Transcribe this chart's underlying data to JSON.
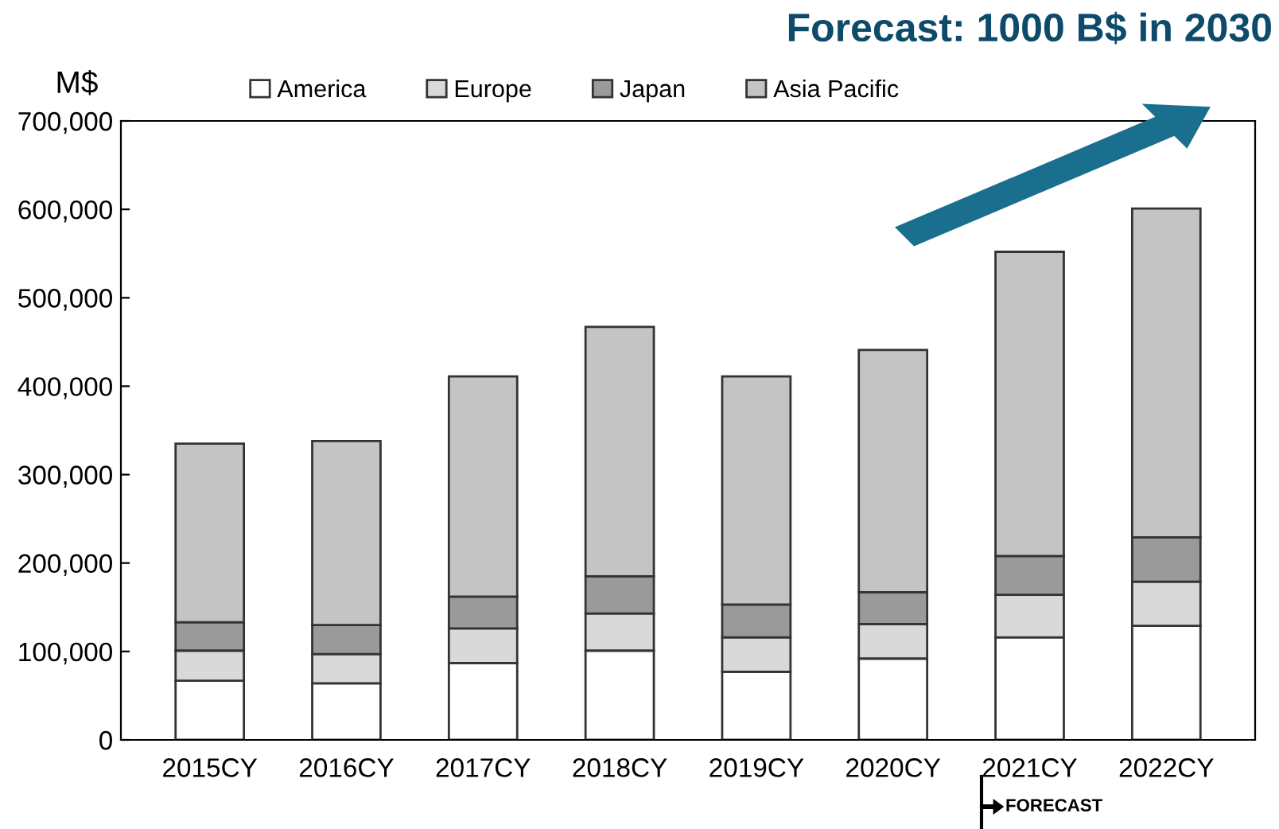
{
  "chart_data": {
    "type": "bar",
    "stacked": true,
    "ylabel": "M$",
    "categories": [
      "2015CY",
      "2016CY",
      "2017CY",
      "2018CY",
      "2019CY",
      "2020CY",
      "2021CY",
      "2022CY"
    ],
    "series": [
      {
        "name": "America",
        "color": "#ffffff",
        "values": [
          67000,
          64000,
          87000,
          101000,
          77000,
          92000,
          116000,
          129000
        ]
      },
      {
        "name": "Europe",
        "color": "#d9d9d9",
        "values": [
          34000,
          33000,
          39000,
          42000,
          39000,
          39000,
          48000,
          50000
        ]
      },
      {
        "name": "Japan",
        "color": "#9a9a9a",
        "values": [
          32000,
          33000,
          36000,
          42000,
          37000,
          36000,
          44000,
          50000
        ]
      },
      {
        "name": "Asia Pacific",
        "color": "#c4c4c4",
        "values": [
          202000,
          208000,
          249000,
          282000,
          258000,
          274000,
          344000,
          372000
        ]
      }
    ],
    "ylim": [
      0,
      700000
    ],
    "yticks": [
      0,
      {
        "value": 100000,
        "label": "100,000"
      },
      {
        "value": 200000,
        "label": "200,000"
      },
      {
        "value": 300000,
        "label": "300,000"
      },
      {
        "value": 400000,
        "label": "400,000"
      },
      {
        "value": 500000,
        "label": "500,000"
      },
      {
        "value": 600000,
        "label": "600,000"
      },
      {
        "value": 700000,
        "label": "700,000"
      }
    ],
    "grid": false,
    "legend": "top",
    "annotations": [
      "Forecast: 1000 B$ in 2030",
      "FORECAST"
    ]
  }
}
